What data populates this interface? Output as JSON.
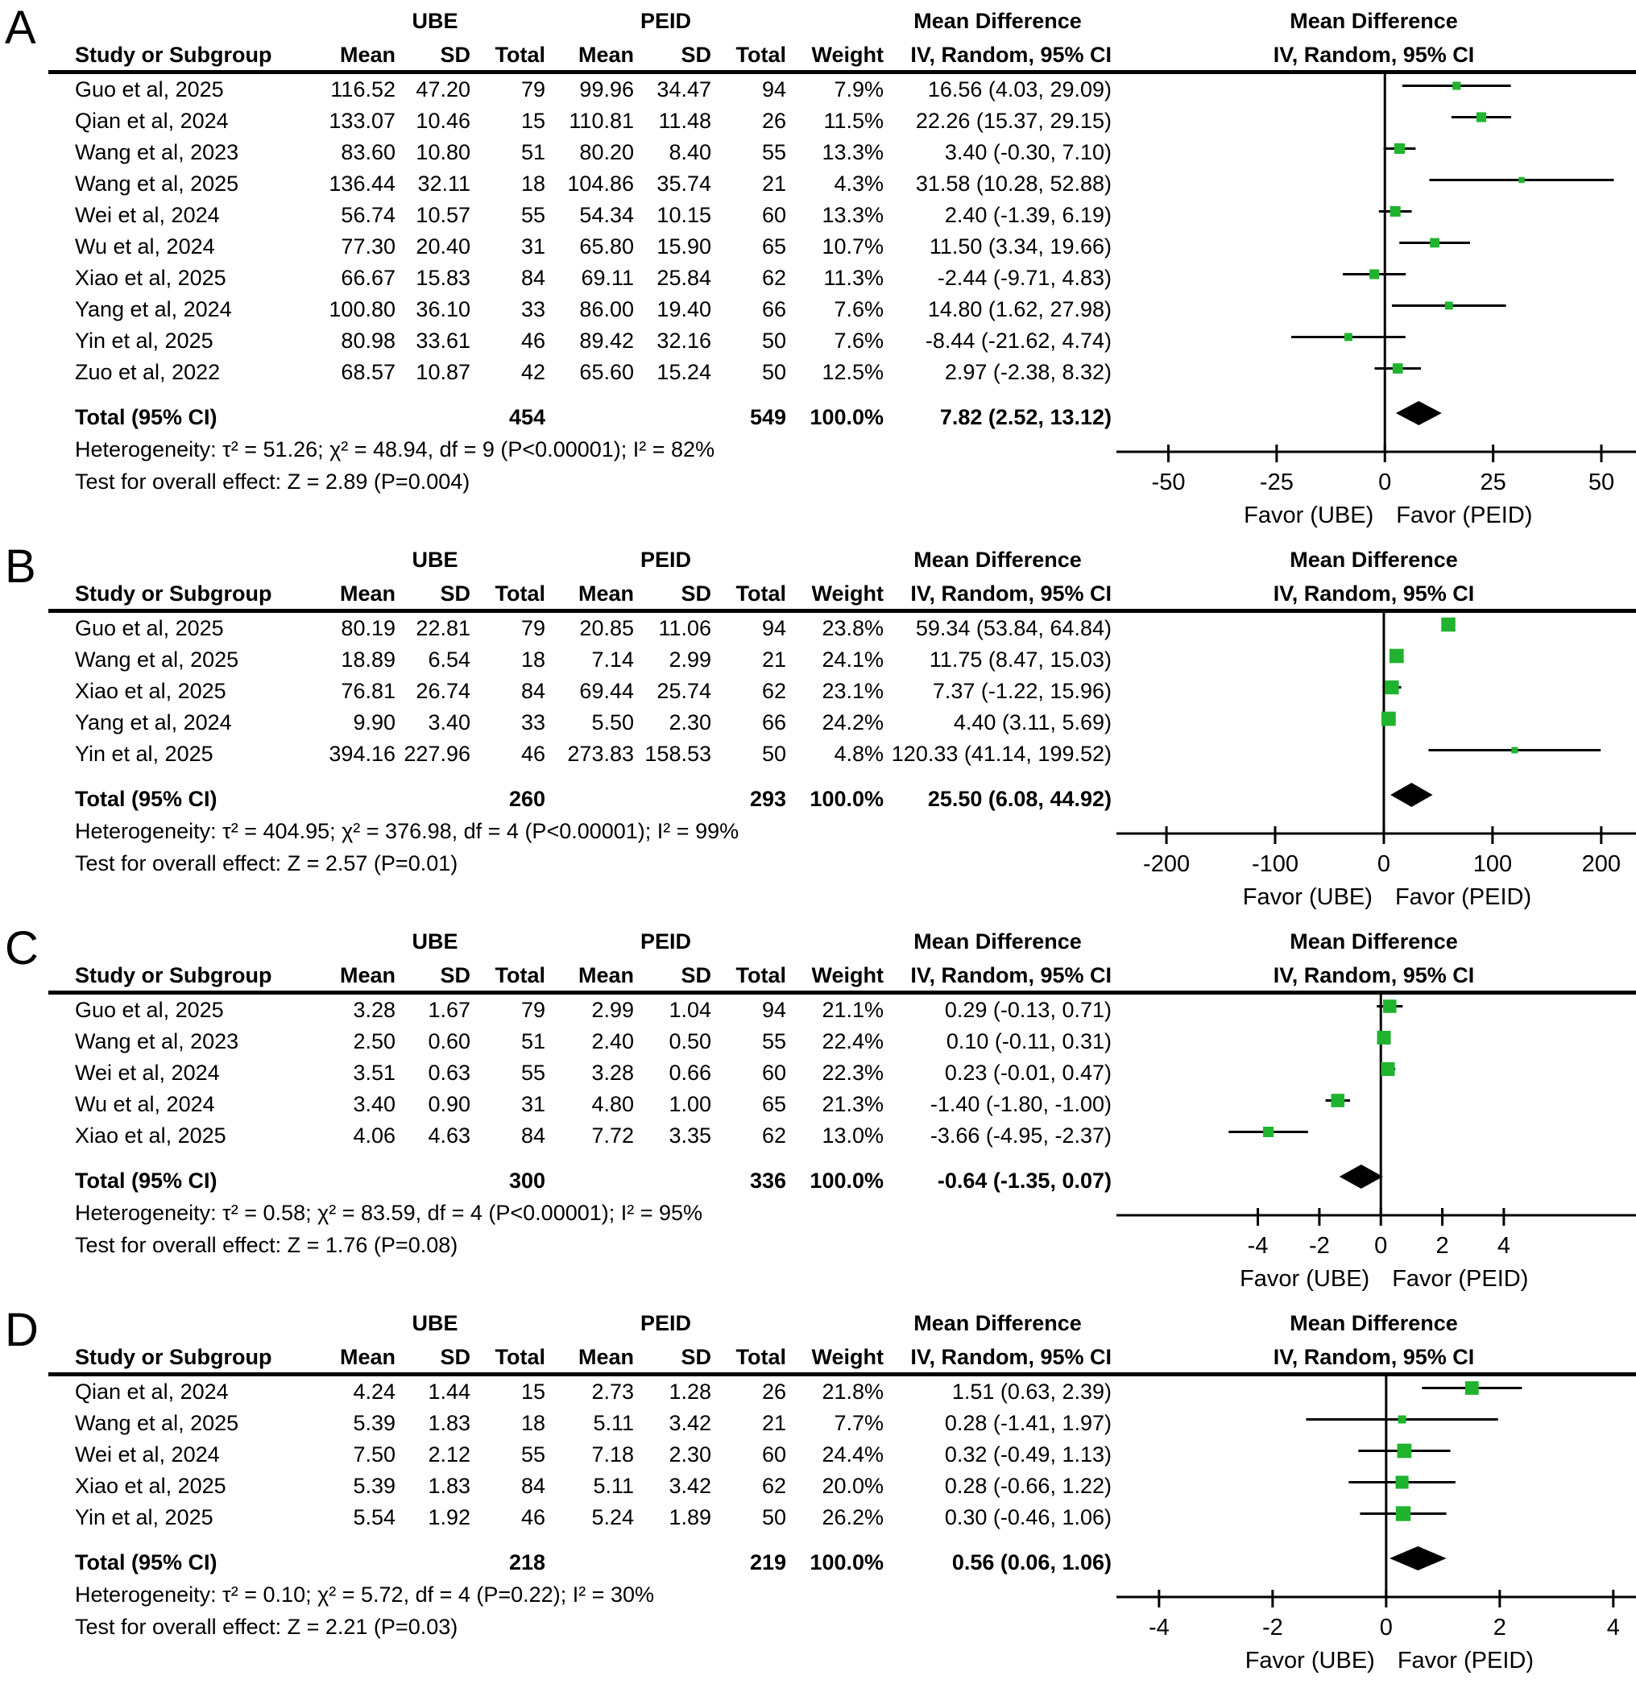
{
  "figure": {
    "marker_color": "#1fb32e",
    "line_color": "#000000",
    "diamond_color": "#000000"
  },
  "chart_data": [
    {
      "type": "scatter",
      "subtype": "forest-plot",
      "panel": "A",
      "group1": "UBE",
      "group2": "PEID",
      "effect_header": "Mean Difference",
      "method_header": "IV, Random, 95% CI",
      "headers": {
        "study": "Study or Subgroup",
        "mean": "Mean",
        "sd": "SD",
        "total": "Total",
        "weight": "Weight"
      },
      "studies": [
        {
          "study": "Guo et al, 2025",
          "ube": {
            "mean": "116.52",
            "sd": "47.20",
            "total": "79"
          },
          "peid": {
            "mean": "99.96",
            "sd": "34.47",
            "total": "94"
          },
          "weight": "7.9%",
          "md": 16.56,
          "ci_low": 4.03,
          "ci_high": 29.09,
          "md_text": "16.56 (4.03, 29.09)"
        },
        {
          "study": "Qian et al, 2024",
          "ube": {
            "mean": "133.07",
            "sd": "10.46",
            "total": "15"
          },
          "peid": {
            "mean": "110.81",
            "sd": "11.48",
            "total": "26"
          },
          "weight": "11.5%",
          "md": 22.26,
          "ci_low": 15.37,
          "ci_high": 29.15,
          "md_text": "22.26 (15.37, 29.15)"
        },
        {
          "study": "Wang et al, 2023",
          "ube": {
            "mean": "83.60",
            "sd": "10.80",
            "total": "51"
          },
          "peid": {
            "mean": "80.20",
            "sd": "8.40",
            "total": "55"
          },
          "weight": "13.3%",
          "md": 3.4,
          "ci_low": -0.3,
          "ci_high": 7.1,
          "md_text": "3.40 (-0.30, 7.10)"
        },
        {
          "study": "Wang et al, 2025",
          "ube": {
            "mean": "136.44",
            "sd": "32.11",
            "total": "18"
          },
          "peid": {
            "mean": "104.86",
            "sd": "35.74",
            "total": "21"
          },
          "weight": "4.3%",
          "md": 31.58,
          "ci_low": 10.28,
          "ci_high": 52.88,
          "md_text": "31.58 (10.28, 52.88)"
        },
        {
          "study": "Wei et al, 2024",
          "ube": {
            "mean": "56.74",
            "sd": "10.57",
            "total": "55"
          },
          "peid": {
            "mean": "54.34",
            "sd": "10.15",
            "total": "60"
          },
          "weight": "13.3%",
          "md": 2.4,
          "ci_low": -1.39,
          "ci_high": 6.19,
          "md_text": "2.40 (-1.39, 6.19)"
        },
        {
          "study": "Wu et al, 2024",
          "ube": {
            "mean": "77.30",
            "sd": "20.40",
            "total": "31"
          },
          "peid": {
            "mean": "65.80",
            "sd": "15.90",
            "total": "65"
          },
          "weight": "10.7%",
          "md": 11.5,
          "ci_low": 3.34,
          "ci_high": 19.66,
          "md_text": "11.50 (3.34, 19.66)"
        },
        {
          "study": "Xiao et al, 2025",
          "ube": {
            "mean": "66.67",
            "sd": "15.83",
            "total": "84"
          },
          "peid": {
            "mean": "69.11",
            "sd": "25.84",
            "total": "62"
          },
          "weight": "11.3%",
          "md": -2.44,
          "ci_low": -9.71,
          "ci_high": 4.83,
          "md_text": "-2.44 (-9.71, 4.83)"
        },
        {
          "study": "Yang et al, 2024",
          "ube": {
            "mean": "100.80",
            "sd": "36.10",
            "total": "33"
          },
          "peid": {
            "mean": "86.00",
            "sd": "19.40",
            "total": "66"
          },
          "weight": "7.6%",
          "md": 14.8,
          "ci_low": 1.62,
          "ci_high": 27.98,
          "md_text": "14.80 (1.62, 27.98)"
        },
        {
          "study": "Yin et al, 2025",
          "ube": {
            "mean": "80.98",
            "sd": "33.61",
            "total": "46"
          },
          "peid": {
            "mean": "89.42",
            "sd": "32.16",
            "total": "50"
          },
          "weight": "7.6%",
          "md": -8.44,
          "ci_low": -21.62,
          "ci_high": 4.74,
          "md_text": "-8.44 (-21.62, 4.74)"
        },
        {
          "study": "Zuo et al, 2022",
          "ube": {
            "mean": "68.57",
            "sd": "10.87",
            "total": "42"
          },
          "peid": {
            "mean": "65.60",
            "sd": "15.24",
            "total": "50"
          },
          "weight": "12.5%",
          "md": 2.97,
          "ci_low": -2.38,
          "ci_high": 8.32,
          "md_text": "2.97 (-2.38, 8.32)"
        }
      ],
      "total": {
        "label": "Total (95% CI)",
        "ube_total": "454",
        "peid_total": "549",
        "weight": "100.0%",
        "md": 7.82,
        "ci_low": 2.52,
        "ci_high": 13.12,
        "md_text": "7.82 (2.52, 13.12)"
      },
      "heterogeneity": "Heterogeneity: τ² = 51.26; χ² = 48.94, df = 9 (P<0.00001); I² = 82%",
      "overall_effect": "Test for overall effect: Z = 2.89 (P=0.004)",
      "axis": {
        "min": -62,
        "max": 58,
        "ticks": [
          -50,
          -25,
          0,
          25,
          50
        ]
      },
      "favor_left": "Favor (UBE)",
      "favor_right": "Favor (PEID)"
    },
    {
      "type": "scatter",
      "subtype": "forest-plot",
      "panel": "B",
      "group1": "UBE",
      "group2": "PEID",
      "effect_header": "Mean Difference",
      "method_header": "IV, Random, 95% CI",
      "headers": {
        "study": "Study or Subgroup",
        "mean": "Mean",
        "sd": "SD",
        "total": "Total",
        "weight": "Weight"
      },
      "studies": [
        {
          "study": "Guo et al, 2025",
          "ube": {
            "mean": "80.19",
            "sd": "22.81",
            "total": "79"
          },
          "peid": {
            "mean": "20.85",
            "sd": "11.06",
            "total": "94"
          },
          "weight": "23.8%",
          "md": 59.34,
          "ci_low": 53.84,
          "ci_high": 64.84,
          "md_text": "59.34 (53.84, 64.84)"
        },
        {
          "study": "Wang et al, 2025",
          "ube": {
            "mean": "18.89",
            "sd": "6.54",
            "total": "18"
          },
          "peid": {
            "mean": "7.14",
            "sd": "2.99",
            "total": "21"
          },
          "weight": "24.1%",
          "md": 11.75,
          "ci_low": 8.47,
          "ci_high": 15.03,
          "md_text": "11.75 (8.47, 15.03)"
        },
        {
          "study": "Xiao et al, 2025",
          "ube": {
            "mean": "76.81",
            "sd": "26.74",
            "total": "84"
          },
          "peid": {
            "mean": "69.44",
            "sd": "25.74",
            "total": "62"
          },
          "weight": "23.1%",
          "md": 7.37,
          "ci_low": -1.22,
          "ci_high": 15.96,
          "md_text": "7.37 (-1.22, 15.96)"
        },
        {
          "study": "Yang et al, 2024",
          "ube": {
            "mean": "9.90",
            "sd": "3.40",
            "total": "33"
          },
          "peid": {
            "mean": "5.50",
            "sd": "2.30",
            "total": "66"
          },
          "weight": "24.2%",
          "md": 4.4,
          "ci_low": 3.11,
          "ci_high": 5.69,
          "md_text": "4.40 (3.11, 5.69)"
        },
        {
          "study": "Yin et al, 2025",
          "ube": {
            "mean": "394.16",
            "sd": "227.96",
            "total": "46"
          },
          "peid": {
            "mean": "273.83",
            "sd": "158.53",
            "total": "50"
          },
          "weight": "4.8%",
          "md": 120.33,
          "ci_low": 41.14,
          "ci_high": 199.52,
          "md_text": "120.33 (41.14, 199.52)"
        }
      ],
      "total": {
        "label": "Total (95% CI)",
        "ube_total": "260",
        "peid_total": "293",
        "weight": "100.0%",
        "md": 25.5,
        "ci_low": 6.08,
        "ci_high": 44.92,
        "md_text": "25.50 (6.08, 44.92)"
      },
      "heterogeneity": "Heterogeneity: τ² = 404.95; χ² = 376.98, df = 4 (P<0.00001); I² = 99%",
      "overall_effect": "Test for overall effect: Z = 2.57 (P=0.01)",
      "axis": {
        "min": -246,
        "max": 232,
        "ticks": [
          -200,
          -100,
          0,
          100,
          200
        ]
      },
      "favor_left": "Favor (UBE)",
      "favor_right": "Favor (PEID)"
    },
    {
      "type": "scatter",
      "subtype": "forest-plot",
      "panel": "C",
      "group1": "UBE",
      "group2": "PEID",
      "effect_header": "Mean Difference",
      "method_header": "IV, Random, 95% CI",
      "headers": {
        "study": "Study or Subgroup",
        "mean": "Mean",
        "sd": "SD",
        "total": "Total",
        "weight": "Weight"
      },
      "studies": [
        {
          "study": "Guo et al, 2025",
          "ube": {
            "mean": "3.28",
            "sd": "1.67",
            "total": "79"
          },
          "peid": {
            "mean": "2.99",
            "sd": "1.04",
            "total": "94"
          },
          "weight": "21.1%",
          "md": 0.29,
          "ci_low": -0.13,
          "ci_high": 0.71,
          "md_text": "0.29 (-0.13, 0.71)"
        },
        {
          "study": "Wang et al, 2023",
          "ube": {
            "mean": "2.50",
            "sd": "0.60",
            "total": "51"
          },
          "peid": {
            "mean": "2.40",
            "sd": "0.50",
            "total": "55"
          },
          "weight": "22.4%",
          "md": 0.1,
          "ci_low": -0.11,
          "ci_high": 0.31,
          "md_text": "0.10 (-0.11, 0.31)"
        },
        {
          "study": "Wei et al, 2024",
          "ube": {
            "mean": "3.51",
            "sd": "0.63",
            "total": "55"
          },
          "peid": {
            "mean": "3.28",
            "sd": "0.66",
            "total": "60"
          },
          "weight": "22.3%",
          "md": 0.23,
          "ci_low": -0.01,
          "ci_high": 0.47,
          "md_text": "0.23 (-0.01, 0.47)"
        },
        {
          "study": "Wu et al, 2024",
          "ube": {
            "mean": "3.40",
            "sd": "0.90",
            "total": "31"
          },
          "peid": {
            "mean": "4.80",
            "sd": "1.00",
            "total": "65"
          },
          "weight": "21.3%",
          "md": -1.4,
          "ci_low": -1.8,
          "ci_high": -1.0,
          "md_text": "-1.40 (-1.80, -1.00)"
        },
        {
          "study": "Xiao et al, 2025",
          "ube": {
            "mean": "4.06",
            "sd": "4.63",
            "total": "84"
          },
          "peid": {
            "mean": "7.72",
            "sd": "3.35",
            "total": "62"
          },
          "weight": "13.0%",
          "md": -3.66,
          "ci_low": -4.95,
          "ci_high": -2.37,
          "md_text": "-3.66 (-4.95, -2.37)"
        }
      ],
      "total": {
        "label": "Total (95% CI)",
        "ube_total": "300",
        "peid_total": "336",
        "weight": "100.0%",
        "md": -0.64,
        "ci_low": -1.35,
        "ci_high": 0.07,
        "md_text": "-0.64 (-1.35, 0.07)"
      },
      "heterogeneity": "Heterogeneity: τ² = 0.58; χ² = 83.59, df = 4 (P<0.00001); I² = 95%",
      "overall_effect": "Test for overall effect: Z = 1.76 (P=0.08)",
      "axis": {
        "min": -8.6,
        "max": 8.3,
        "ticks": [
          -4,
          -2,
          0,
          2,
          4
        ]
      },
      "favor_left": "Favor (UBE)",
      "favor_right": "Favor (PEID)"
    },
    {
      "type": "scatter",
      "subtype": "forest-plot",
      "panel": "D",
      "group1": "UBE",
      "group2": "PEID",
      "effect_header": "Mean Difference",
      "method_header": "IV, Random, 95% CI",
      "headers": {
        "study": "Study or Subgroup",
        "mean": "Mean",
        "sd": "SD",
        "total": "Total",
        "weight": "Weight"
      },
      "studies": [
        {
          "study": "Qian et al, 2024",
          "ube": {
            "mean": "4.24",
            "sd": "1.44",
            "total": "15"
          },
          "peid": {
            "mean": "2.73",
            "sd": "1.28",
            "total": "26"
          },
          "weight": "21.8%",
          "md": 1.51,
          "ci_low": 0.63,
          "ci_high": 2.39,
          "md_text": "1.51 (0.63, 2.39)"
        },
        {
          "study": "Wang et al, 2025",
          "ube": {
            "mean": "5.39",
            "sd": "1.83",
            "total": "18"
          },
          "peid": {
            "mean": "5.11",
            "sd": "3.42",
            "total": "21"
          },
          "weight": "7.7%",
          "md": 0.28,
          "ci_low": -1.41,
          "ci_high": 1.97,
          "md_text": "0.28 (-1.41, 1.97)"
        },
        {
          "study": "Wei et al, 2024",
          "ube": {
            "mean": "7.50",
            "sd": "2.12",
            "total": "55"
          },
          "peid": {
            "mean": "7.18",
            "sd": "2.30",
            "total": "60"
          },
          "weight": "24.4%",
          "md": 0.32,
          "ci_low": -0.49,
          "ci_high": 1.13,
          "md_text": "0.32 (-0.49, 1.13)"
        },
        {
          "study": "Xiao et al, 2025",
          "ube": {
            "mean": "5.39",
            "sd": "1.83",
            "total": "84"
          },
          "peid": {
            "mean": "5.11",
            "sd": "3.42",
            "total": "62"
          },
          "weight": "20.0%",
          "md": 0.28,
          "ci_low": -0.66,
          "ci_high": 1.22,
          "md_text": "0.28 (-0.66, 1.22)"
        },
        {
          "study": "Yin et al, 2025",
          "ube": {
            "mean": "5.54",
            "sd": "1.92",
            "total": "46"
          },
          "peid": {
            "mean": "5.24",
            "sd": "1.89",
            "total": "50"
          },
          "weight": "26.2%",
          "md": 0.3,
          "ci_low": -0.46,
          "ci_high": 1.06,
          "md_text": "0.30 (-0.46, 1.06)"
        }
      ],
      "total": {
        "label": "Total (95% CI)",
        "ube_total": "218",
        "peid_total": "219",
        "weight": "100.0%",
        "md": 0.56,
        "ci_low": 0.06,
        "ci_high": 1.06,
        "md_text": "0.56 (0.06, 1.06)"
      },
      "heterogeneity": "Heterogeneity: τ² = 0.10; χ² = 5.72, df = 4 (P=0.22); I² = 30%",
      "overall_effect": "Test for overall effect: Z = 2.21 (P=0.03)",
      "axis": {
        "min": -4.75,
        "max": 4.4,
        "ticks": [
          -4,
          -2,
          0,
          2,
          4
        ]
      },
      "favor_left": "Favor (UBE)",
      "favor_right": "Favor (PEID)"
    }
  ]
}
